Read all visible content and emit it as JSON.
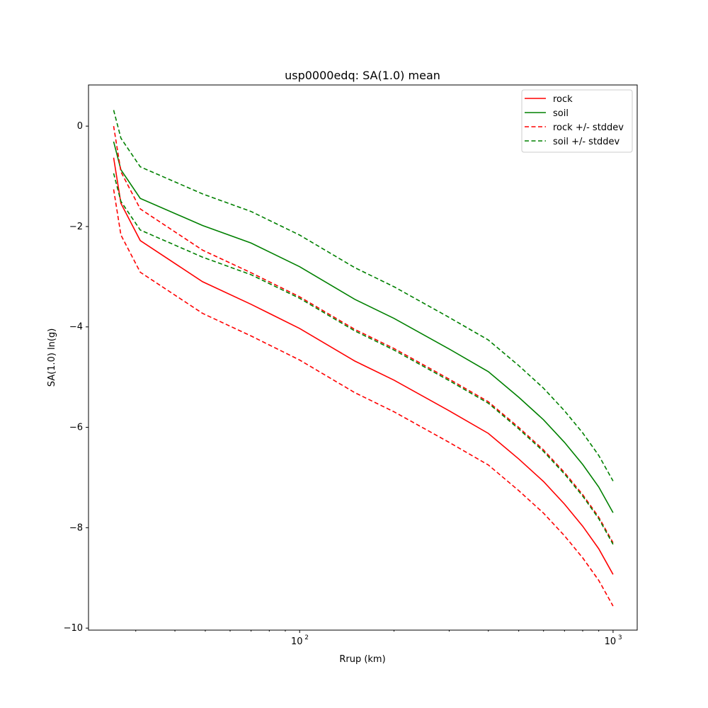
{
  "chart_data": {
    "type": "line",
    "title": "usp0000edq: SA(1.0) mean",
    "xlabel": "Rrup (km)",
    "ylabel": "SA(1.0) ln(g)",
    "xscale": "log",
    "xlim": [
      21.2,
      1194
    ],
    "ylim": [
      -10.04,
      0.82
    ],
    "xticks": [
      {
        "value": 100,
        "label": "10",
        "exp": "2"
      },
      {
        "value": 1000,
        "label": "10",
        "exp": "3"
      }
    ],
    "yticks": [
      0,
      -2,
      -4,
      -6,
      -8,
      -10
    ],
    "ytick_labels": [
      "0",
      "−2",
      "−4",
      "−6",
      "−8",
      "−10"
    ],
    "grid": false,
    "legend_position": "top-right",
    "x": [
      25.5,
      26.9,
      31,
      49,
      70,
      100,
      150,
      200,
      300,
      400,
      500,
      600,
      700,
      800,
      900,
      1000
    ],
    "series": [
      {
        "name": "rock",
        "color": "#ff0000",
        "style": "solid",
        "values": [
          -0.63,
          -1.54,
          -2.28,
          -3.1,
          -3.55,
          -4.03,
          -4.68,
          -5.06,
          -5.67,
          -6.12,
          -6.63,
          -7.08,
          -7.53,
          -7.97,
          -8.42,
          -8.93
        ]
      },
      {
        "name": "soil",
        "color": "#008000",
        "style": "solid",
        "values": [
          -0.31,
          -0.87,
          -1.44,
          -1.98,
          -2.33,
          -2.8,
          -3.45,
          -3.83,
          -4.44,
          -4.89,
          -5.4,
          -5.85,
          -6.3,
          -6.74,
          -7.19,
          -7.7
        ]
      },
      {
        "name": "rock +/- stddev",
        "color": "#ff0000",
        "style": "dashed",
        "values": [
          0.0,
          -0.91,
          -1.65,
          -2.47,
          -2.92,
          -3.4,
          -4.05,
          -4.43,
          -5.04,
          -5.49,
          -6.0,
          -6.45,
          -6.9,
          -7.34,
          -7.79,
          -8.3
        ],
        "values_lower": [
          -1.26,
          -2.17,
          -2.91,
          -3.73,
          -4.18,
          -4.66,
          -5.31,
          -5.69,
          -6.3,
          -6.75,
          -7.26,
          -7.71,
          -8.16,
          -8.6,
          -9.05,
          -9.56
        ]
      },
      {
        "name": "soil +/- stddev",
        "color": "#008000",
        "style": "dashed",
        "values": [
          0.32,
          -0.24,
          -0.81,
          -1.35,
          -1.7,
          -2.17,
          -2.82,
          -3.2,
          -3.81,
          -4.26,
          -4.77,
          -5.22,
          -5.67,
          -6.11,
          -6.56,
          -7.07
        ],
        "values_lower": [
          -0.94,
          -1.5,
          -2.07,
          -2.61,
          -2.96,
          -3.43,
          -4.08,
          -4.46,
          -5.07,
          -5.52,
          -6.03,
          -6.48,
          -6.93,
          -7.37,
          -7.82,
          -8.33
        ]
      }
    ]
  }
}
